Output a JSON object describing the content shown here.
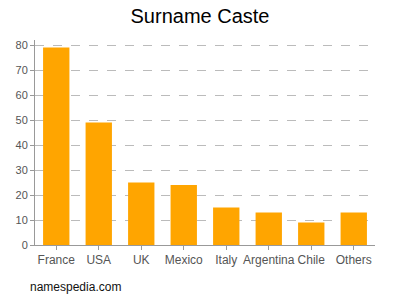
{
  "chart_data": {
    "type": "bar",
    "title": "Surname Caste",
    "categories": [
      "France",
      "USA",
      "UK",
      "Mexico",
      "Italy",
      "Argentina",
      "Chile",
      "Others"
    ],
    "values": [
      79,
      49,
      25,
      24,
      15,
      13,
      9,
      13
    ],
    "color": "#ffa500",
    "ylim": [
      0,
      82
    ],
    "yticks": [
      0,
      10,
      20,
      30,
      40,
      50,
      60,
      70,
      80
    ],
    "grid": true,
    "annotations": [
      "namespedia.com"
    ]
  }
}
